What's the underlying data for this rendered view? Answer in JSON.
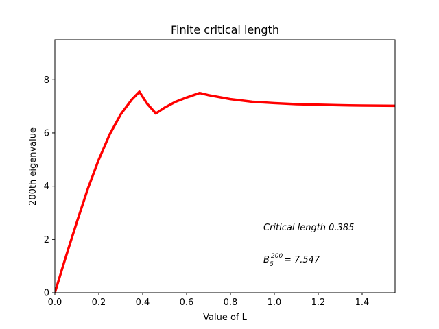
{
  "chart_data": {
    "type": "line",
    "title": "Finite critical length",
    "xlabel": "Value of L",
    "ylabel": "200th eigenvalue",
    "xlim": [
      0,
      1.55
    ],
    "ylim": [
      0,
      9.5
    ],
    "xticks": [
      0.0,
      0.2,
      0.4,
      0.6,
      0.8,
      1.0,
      1.2,
      1.4
    ],
    "xtick_labels": [
      "0.0",
      "0.2",
      "0.4",
      "0.6",
      "0.8",
      "1.0",
      "1.2",
      "1.4"
    ],
    "yticks": [
      0,
      2,
      4,
      6,
      8
    ],
    "ytick_labels": [
      "0",
      "2",
      "4",
      "6",
      "8"
    ],
    "grid": false,
    "series": [
      {
        "color": "#ff0000",
        "x": [
          0,
          0.05,
          0.1,
          0.15,
          0.2,
          0.25,
          0.3,
          0.35,
          0.385,
          0.42,
          0.46,
          0.5,
          0.55,
          0.6,
          0.66,
          0.7,
          0.8,
          0.9,
          1.0,
          1.1,
          1.2,
          1.3,
          1.4,
          1.55
        ],
        "y": [
          0,
          1.35,
          2.65,
          3.9,
          5.0,
          5.95,
          6.7,
          7.25,
          7.547,
          7.1,
          6.73,
          6.95,
          7.17,
          7.33,
          7.5,
          7.42,
          7.27,
          7.17,
          7.12,
          7.08,
          7.06,
          7.04,
          7.03,
          7.02
        ]
      }
    ],
    "annotations": {
      "critical_text": "Critical length 0.385",
      "eig_base": "B",
      "eig_sub": "5",
      "eig_sup": "200",
      "eig_value": "= 7.547"
    }
  }
}
